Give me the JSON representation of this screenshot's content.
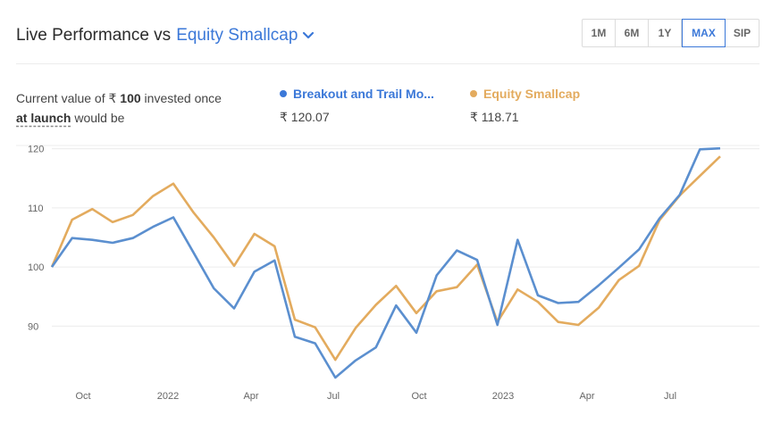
{
  "header": {
    "title": "Live Performance vs",
    "benchmark": "Equity Smallcap",
    "benchmark_dropdown_icon": "chevron-down-icon"
  },
  "range_buttons": [
    {
      "label": "1M",
      "active": false
    },
    {
      "label": "6M",
      "active": false
    },
    {
      "label": "1Y",
      "active": false
    },
    {
      "label": "MAX",
      "active": true
    },
    {
      "label": "SIP",
      "active": false
    }
  ],
  "summary": {
    "prefix": "Current value of ₹",
    "amount": "100",
    "middle": "invested once",
    "link": "at launch",
    "suffix": "would be"
  },
  "legend": [
    {
      "name": "Breakout and Trail Mo...",
      "value": "₹ 120.07",
      "color": "#3b78d8"
    },
    {
      "name": "Equity Smallcap",
      "value": "₹ 118.71",
      "color": "#e3ab5e"
    }
  ],
  "chart_data": {
    "type": "line",
    "x_tick_labels": [
      "Oct",
      "2022",
      "Apr",
      "Jul",
      "Oct",
      "2023",
      "Apr",
      "Jul"
    ],
    "ylim": [
      81,
      121
    ],
    "y_ticks": [
      90,
      100,
      110,
      120
    ],
    "grid": true,
    "x_index_range": [
      0,
      36
    ],
    "series": [
      {
        "name": "Breakout and Trail Mo...",
        "color": "#5b8fcf",
        "values": [
          100,
          104.9,
          104.6,
          104.1,
          104.9,
          106.8,
          108.4,
          102.4,
          96.4,
          93.0,
          99.2,
          101.1,
          88.2,
          87.1,
          81.3,
          84.2,
          86.4,
          93.5,
          88.9,
          98.6,
          102.8,
          101.2,
          90.2,
          104.6,
          95.2,
          93.9,
          94.1,
          96.9,
          99.9,
          103.0,
          108.2,
          112.2,
          119.9,
          120.07
        ]
      },
      {
        "name": "Equity Smallcap",
        "color": "#e3ab5e",
        "values": [
          100,
          108.0,
          109.8,
          107.6,
          108.8,
          112.0,
          114.1,
          109.2,
          105.0,
          100.2,
          105.6,
          103.5,
          91.1,
          89.8,
          84.3,
          89.7,
          93.6,
          96.8,
          92.2,
          95.9,
          96.6,
          100.4,
          90.7,
          96.2,
          94.1,
          90.7,
          90.2,
          93.1,
          97.8,
          100.2,
          107.9,
          112.1,
          115.4,
          118.71
        ]
      }
    ]
  }
}
